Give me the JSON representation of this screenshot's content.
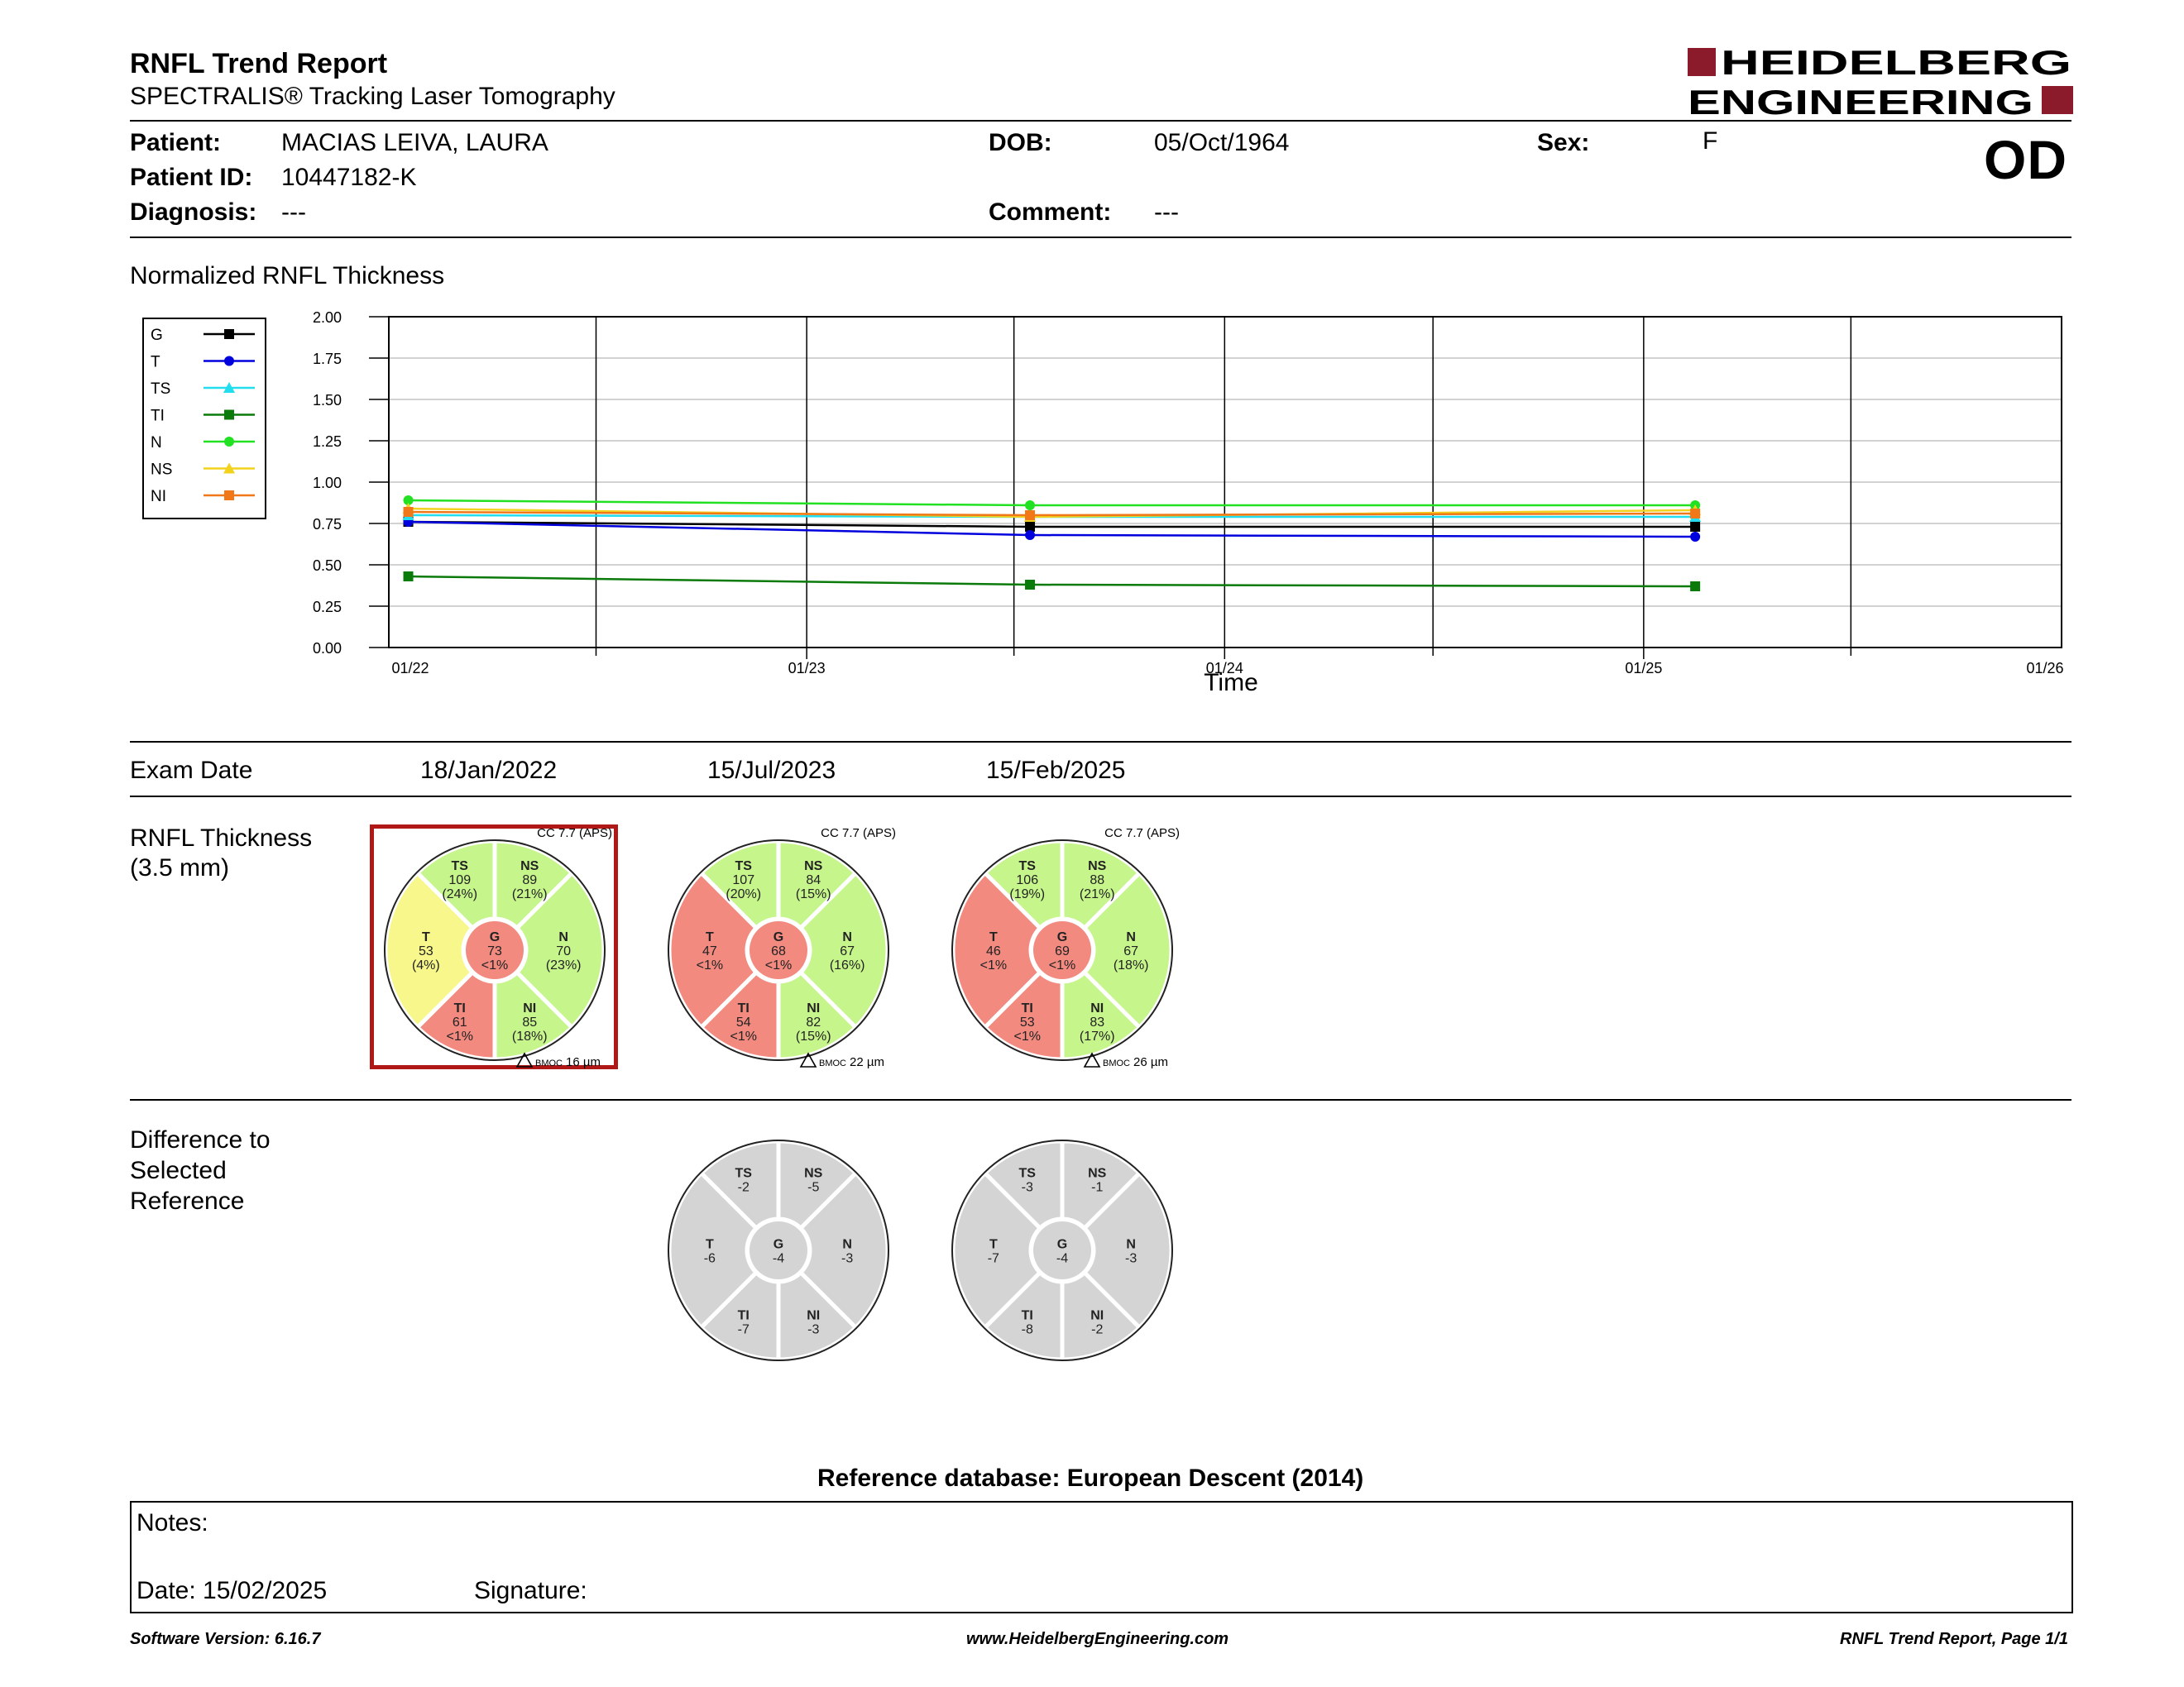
{
  "header": {
    "title": "RNFL Trend Report",
    "subtitle": "SPECTRALIS® Tracking Laser Tomography",
    "brand_line1": "HEIDELBERG",
    "brand_line2": "ENGINEERING",
    "brand_color": "#8b1a2b",
    "eye": "OD"
  },
  "patient": {
    "patient_label": "Patient:",
    "patient_value": "MACIAS LEIVA, LAURA",
    "id_label": "Patient ID:",
    "id_value": "10447182-K",
    "diagnosis_label": "Diagnosis:",
    "diagnosis_value": "---",
    "dob_label": "DOB:",
    "dob_value": "05/Oct/1964",
    "comment_label": "Comment:",
    "comment_value": "---",
    "sex_label": "Sex:",
    "sex_value": "F"
  },
  "chart_title": "Normalized RNFL Thickness",
  "chart_data": {
    "type": "line",
    "xlabel": "Time",
    "ylabel": "",
    "ylim": [
      0,
      2.0
    ],
    "yticks": [
      "2.00",
      "1.75",
      "1.50",
      "1.25",
      "1.00",
      "0.75",
      "0.50",
      "0.25",
      "0.00"
    ],
    "xlim": [
      "2022-01-01",
      "2026-01-01"
    ],
    "xticks": [
      "01/22",
      "01/23",
      "01/24",
      "01/25",
      "01/26"
    ],
    "x": [
      "2022-01-18",
      "2023-07-15",
      "2025-02-15"
    ],
    "grid": true,
    "legend_position": "left",
    "series": [
      {
        "name": "G",
        "color": "#000000",
        "marker": "square",
        "values": [
          0.76,
          0.73,
          0.73
        ]
      },
      {
        "name": "T",
        "color": "#0000dd",
        "marker": "circle",
        "values": [
          0.76,
          0.68,
          0.67
        ]
      },
      {
        "name": "TS",
        "color": "#22ddee",
        "marker": "triangle",
        "values": [
          0.8,
          0.79,
          0.79
        ]
      },
      {
        "name": "TI",
        "color": "#0a7a0a",
        "marker": "square",
        "values": [
          0.43,
          0.38,
          0.37
        ]
      },
      {
        "name": "N",
        "color": "#22e022",
        "marker": "circle",
        "values": [
          0.89,
          0.86,
          0.86
        ]
      },
      {
        "name": "NS",
        "color": "#f2d21c",
        "marker": "triangle",
        "values": [
          0.84,
          0.79,
          0.83
        ]
      },
      {
        "name": "NI",
        "color": "#f07818",
        "marker": "square",
        "values": [
          0.82,
          0.8,
          0.81
        ]
      }
    ]
  },
  "exams": {
    "label": "Exam Date",
    "dates": [
      "18/Jan/2022",
      "15/Jul/2023",
      "15/Feb/2025"
    ]
  },
  "rnfl": {
    "label_line1": "RNFL Thickness",
    "label_line2": "(3.5 mm)",
    "colors": {
      "red": "#f28a80",
      "yellow": "#f7f78c",
      "green": "#c6f58c",
      "gray": "#d4d4d4"
    },
    "exams": [
      {
        "cc": "CC 7.7 (APS)",
        "bmoc": "BMOC 16 µm",
        "selected": true,
        "sectors": {
          "TS": {
            "value": "109",
            "pct": "(24%)",
            "class": "green"
          },
          "NS": {
            "value": "89",
            "pct": "(21%)",
            "class": "green"
          },
          "N": {
            "value": "70",
            "pct": "(23%)",
            "class": "green"
          },
          "NI": {
            "value": "85",
            "pct": "(18%)",
            "class": "green"
          },
          "TI": {
            "value": "61",
            "pct": "<1%",
            "class": "red"
          },
          "T": {
            "value": "53",
            "pct": "(4%)",
            "class": "yellow"
          },
          "G": {
            "value": "73",
            "pct": "<1%",
            "class": "red"
          }
        }
      },
      {
        "cc": "CC 7.7 (APS)",
        "bmoc": "BMOC 22 µm",
        "selected": false,
        "sectors": {
          "TS": {
            "value": "107",
            "pct": "(20%)",
            "class": "green"
          },
          "NS": {
            "value": "84",
            "pct": "(15%)",
            "class": "green"
          },
          "N": {
            "value": "67",
            "pct": "(16%)",
            "class": "green"
          },
          "NI": {
            "value": "82",
            "pct": "(15%)",
            "class": "green"
          },
          "TI": {
            "value": "54",
            "pct": "<1%",
            "class": "red"
          },
          "T": {
            "value": "47",
            "pct": "<1%",
            "class": "red"
          },
          "G": {
            "value": "68",
            "pct": "<1%",
            "class": "red"
          }
        }
      },
      {
        "cc": "CC 7.7 (APS)",
        "bmoc": "BMOC 26 µm",
        "selected": false,
        "sectors": {
          "TS": {
            "value": "106",
            "pct": "(19%)",
            "class": "green"
          },
          "NS": {
            "value": "88",
            "pct": "(21%)",
            "class": "green"
          },
          "N": {
            "value": "67",
            "pct": "(18%)",
            "class": "green"
          },
          "NI": {
            "value": "83",
            "pct": "(17%)",
            "class": "green"
          },
          "TI": {
            "value": "53",
            "pct": "<1%",
            "class": "red"
          },
          "T": {
            "value": "46",
            "pct": "<1%",
            "class": "red"
          },
          "G": {
            "value": "69",
            "pct": "<1%",
            "class": "red"
          }
        }
      }
    ]
  },
  "difference": {
    "label_line1": "Difference to",
    "label_line2": "Selected",
    "label_line3": "Reference",
    "exams": [
      {
        "sectors": {
          "TS": "-2",
          "NS": "-5",
          "N": "-3",
          "NI": "-3",
          "TI": "-7",
          "T": "-6",
          "G": "-4"
        }
      },
      {
        "sectors": {
          "TS": "-3",
          "NS": "-1",
          "N": "-3",
          "NI": "-2",
          "TI": "-8",
          "T": "-7",
          "G": "-4"
        }
      }
    ]
  },
  "reference_db": "Reference database: European Descent (2014)",
  "notes": {
    "notes_label": "Notes:",
    "date_label": "Date: 15/02/2025",
    "signature_label": "Signature:"
  },
  "footer": {
    "left": "Software Version: 6.16.7",
    "center": "www.HeidelbergEngineering.com",
    "right": "RNFL Trend Report, Page 1/1"
  }
}
